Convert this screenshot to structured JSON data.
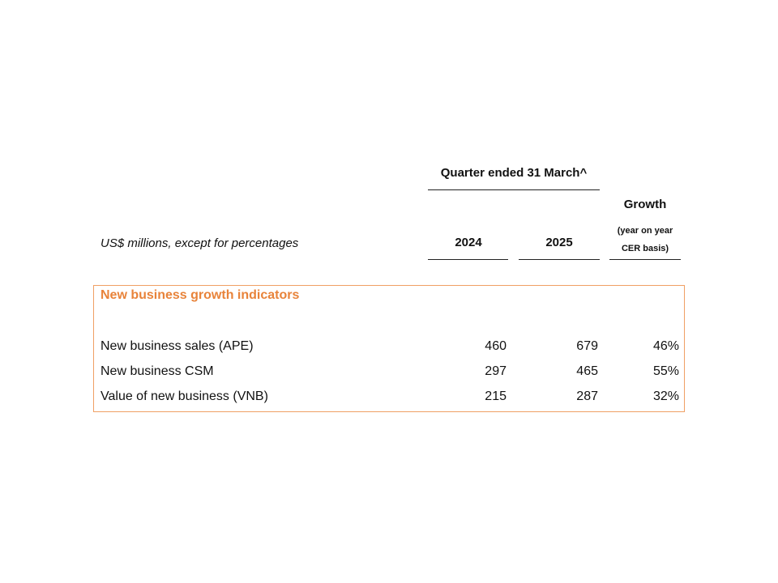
{
  "header": {
    "quarter_title": "Quarter ended 31 March^",
    "growth_title": "Growth",
    "growth_sub_line1": "(year on year",
    "growth_sub_line2": "CER basis)",
    "units_label": "US$ millions, except for percentages",
    "year_1": "2024",
    "year_2": "2025"
  },
  "section": {
    "title": "New business growth indicators",
    "rows": [
      {
        "label": "New business sales (APE)",
        "v2024": "460",
        "v2025": "679",
        "growth": "46%"
      },
      {
        "label": "New business CSM",
        "v2024": "297",
        "v2025": "465",
        "growth": "55%"
      },
      {
        "label": "Value of new business (VNB)",
        "v2024": "215",
        "v2025": "287",
        "growth": "32%"
      }
    ]
  },
  "colors": {
    "accent": "#e8833a",
    "panel_border": "#f0a064"
  }
}
